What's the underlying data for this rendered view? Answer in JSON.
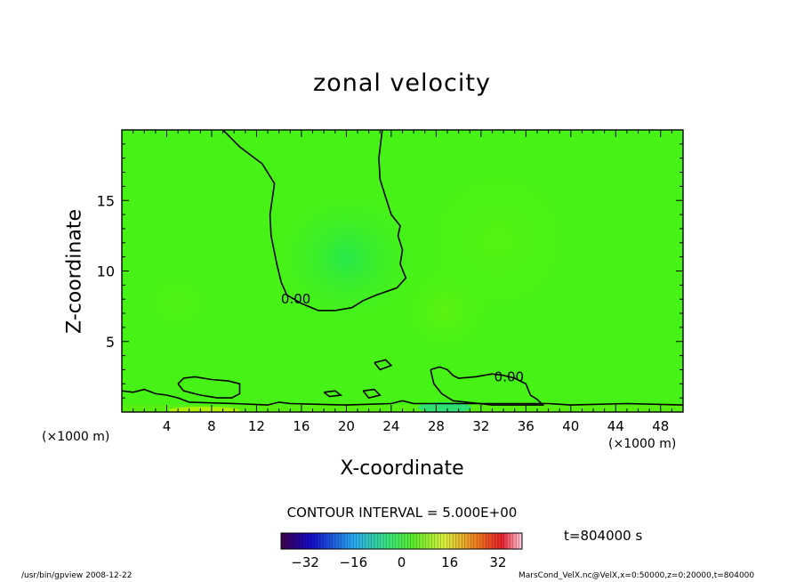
{
  "chart_data": {
    "type": "heatmap",
    "title": "zonal velocity",
    "xlabel": "X-coordinate",
    "ylabel": "Z-coordinate",
    "x_unit_left": "(×1000 m)",
    "x_unit_right": "(×1000 m)",
    "xlim": [
      0,
      50
    ],
    "ylim": [
      0,
      20
    ],
    "x_ticks": [
      4,
      8,
      12,
      16,
      20,
      24,
      28,
      32,
      36,
      40,
      44,
      48
    ],
    "y_ticks": [
      5,
      10,
      15
    ],
    "contour_labels": [
      {
        "text": "0.00",
        "x": 15.5,
        "y": 8.0
      },
      {
        "text": "0.00",
        "x": 34.5,
        "y": 2.5
      }
    ],
    "contour_zero_upper": [
      [
        9.0,
        20.0
      ],
      [
        10.5,
        18.8
      ],
      [
        12.5,
        17.6
      ],
      [
        13.6,
        16.2
      ],
      [
        13.2,
        14.0
      ],
      [
        13.3,
        12.5
      ],
      [
        13.8,
        10.5
      ],
      [
        14.2,
        9.2
      ],
      [
        14.7,
        8.3
      ],
      [
        16.0,
        7.7
      ],
      [
        17.5,
        7.2
      ],
      [
        19.0,
        7.2
      ],
      [
        20.5,
        7.4
      ],
      [
        21.5,
        7.9
      ],
      [
        22.7,
        8.3
      ],
      [
        24.5,
        8.8
      ],
      [
        25.3,
        9.5
      ],
      [
        24.8,
        10.5
      ],
      [
        25.0,
        11.5
      ],
      [
        24.6,
        12.5
      ],
      [
        24.8,
        13.2
      ],
      [
        24.0,
        14.0
      ],
      [
        23.6,
        15.0
      ],
      [
        23.0,
        16.5
      ],
      [
        22.9,
        18.0
      ],
      [
        23.2,
        20.0
      ]
    ],
    "contour_zero_lower_a": [
      [
        5.0,
        2.0
      ],
      [
        5.5,
        2.4
      ],
      [
        6.5,
        2.5
      ],
      [
        8.0,
        2.3
      ],
      [
        9.5,
        2.2
      ],
      [
        10.5,
        2.0
      ],
      [
        10.5,
        1.3
      ],
      [
        9.8,
        1.0
      ],
      [
        8.5,
        1.0
      ],
      [
        7.0,
        1.2
      ],
      [
        5.5,
        1.5
      ],
      [
        5.0,
        2.0
      ]
    ],
    "contour_zero_lower_b": [
      [
        27.5,
        3.0
      ],
      [
        28.3,
        3.2
      ],
      [
        29.0,
        3.0
      ],
      [
        29.5,
        2.6
      ],
      [
        30.0,
        2.4
      ],
      [
        31.5,
        2.5
      ],
      [
        33.0,
        2.7
      ],
      [
        34.0,
        2.6
      ],
      [
        35.0,
        2.4
      ],
      [
        36.0,
        2.0
      ],
      [
        36.4,
        1.2
      ],
      [
        37.0,
        0.9
      ],
      [
        37.5,
        0.5
      ],
      [
        36.0,
        0.5
      ],
      [
        33.0,
        0.5
      ],
      [
        29.5,
        0.8
      ],
      [
        28.5,
        1.3
      ],
      [
        27.8,
        2.0
      ],
      [
        27.5,
        3.0
      ]
    ],
    "contour_small": [
      [
        [
          22.5,
          3.5
        ],
        [
          23.5,
          3.7
        ],
        [
          24.0,
          3.3
        ],
        [
          23.0,
          3.0
        ],
        [
          22.5,
          3.5
        ]
      ],
      [
        [
          21.5,
          1.5
        ],
        [
          22.5,
          1.6
        ],
        [
          23.0,
          1.2
        ],
        [
          22.0,
          1.0
        ],
        [
          21.5,
          1.5
        ]
      ],
      [
        [
          18.0,
          1.4
        ],
        [
          19.0,
          1.5
        ],
        [
          19.5,
          1.2
        ],
        [
          18.5,
          1.1
        ],
        [
          18.0,
          1.4
        ]
      ]
    ],
    "contour_surface": [
      [
        0,
        1.5
      ],
      [
        1.0,
        1.4
      ],
      [
        2.0,
        1.6
      ],
      [
        3.0,
        1.3
      ],
      [
        4.0,
        1.2
      ],
      [
        5.0,
        1.0
      ],
      [
        6.0,
        0.7
      ],
      [
        10.0,
        0.6
      ],
      [
        13.0,
        0.5
      ],
      [
        14.0,
        0.7
      ],
      [
        15.0,
        0.6
      ],
      [
        20.0,
        0.5
      ],
      [
        24.0,
        0.6
      ],
      [
        25.0,
        0.8
      ],
      [
        26.0,
        0.6
      ],
      [
        38.0,
        0.6
      ],
      [
        40.0,
        0.5
      ],
      [
        45.0,
        0.6
      ],
      [
        50.0,
        0.5
      ]
    ],
    "contour_interval": "CONTOUR INTERVAL = 5.000E+00",
    "time_label": "t=804000 s",
    "colorbar": {
      "ticks": [
        -32,
        -16,
        0,
        16,
        32
      ],
      "tick_labels": [
        "−32",
        "−16",
        "0",
        "16",
        "32"
      ],
      "range": [
        -40,
        40
      ]
    },
    "legend": "none"
  },
  "footer": {
    "left": "/usr/bin/gpview  2008-12-22",
    "right": "MarsCond_VelX.nc@VelX,x=0:50000,z=0:20000,t=804000"
  }
}
